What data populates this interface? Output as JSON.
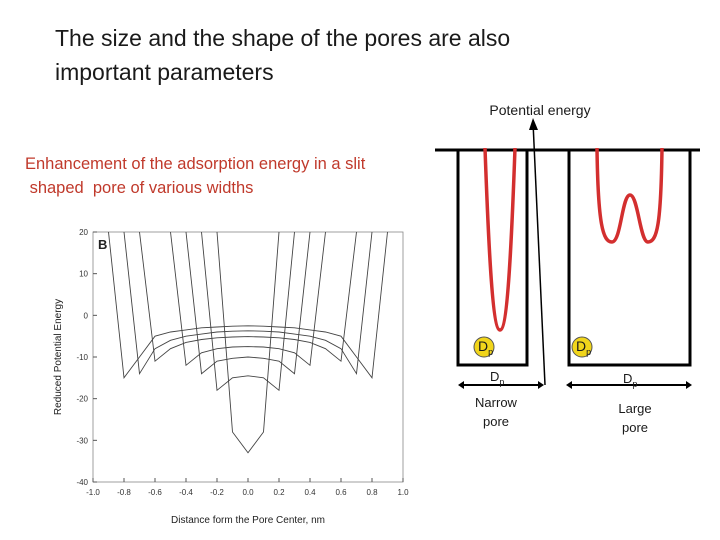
{
  "title": [
    "The size and the shape of the pores are also",
    "important parameters"
  ],
  "subtitle": [
    "Enhancement of the adsorption energy in a slit",
    " shaped  pore of various widths"
  ],
  "chart_data": {
    "type": "line",
    "panel_label": "B",
    "x_label": "Distance form the Pore Center, nm",
    "y_label": "Reduced Potential Energy",
    "x": [
      -1.0,
      -0.9,
      -0.8,
      -0.7,
      -0.6,
      -0.5,
      -0.4,
      -0.3,
      -0.2,
      -0.1,
      0.0,
      0.1,
      0.2,
      0.3,
      0.4,
      0.5,
      0.6,
      0.7,
      0.8,
      0.9,
      1.0
    ],
    "xlim": [
      -1,
      1
    ],
    "ylim": [
      -40,
      20
    ],
    "xticks": [
      {
        "value": -1,
        "label": "-1.0"
      },
      {
        "value": -0.8,
        "label": "-0.8"
      },
      {
        "value": -0.6,
        "label": "-0.6"
      },
      {
        "value": -0.4,
        "label": "-0.4"
      },
      {
        "value": -0.2,
        "label": "-0.2"
      },
      {
        "value": 0,
        "label": "0.0"
      },
      {
        "value": 0.2,
        "label": "0.2"
      },
      {
        "value": 0.4,
        "label": "0.4"
      },
      {
        "value": 0.6,
        "label": "0.6"
      },
      {
        "value": 0.8,
        "label": "0.8"
      },
      {
        "value": 1,
        "label": "1.0"
      }
    ],
    "yticks": [
      20,
      10,
      0,
      -10,
      -20,
      -30,
      -40
    ],
    "color": "#444444",
    "series": [
      {
        "values": [
          null,
          20,
          -15,
          -10,
          -5,
          -4,
          -3.5,
          -3,
          -2.8,
          -2.6,
          -2.5,
          -2.6,
          -2.8,
          -3,
          -3.5,
          -4,
          -5,
          -10,
          -15,
          20,
          null
        ]
      },
      {
        "values": [
          null,
          null,
          20,
          -14,
          -8,
          -6,
          -5,
          -4.5,
          -4,
          -3.8,
          -3.7,
          -3.8,
          -4,
          -4.5,
          -5,
          -6,
          -8,
          -14,
          20,
          null,
          null
        ]
      },
      {
        "values": [
          null,
          null,
          null,
          20,
          -11,
          -8,
          -6.5,
          -5.8,
          -5.4,
          -5.2,
          -5.1,
          -5.2,
          -5.4,
          -5.8,
          -6.5,
          -8,
          -11,
          20,
          null,
          null,
          null
        ]
      },
      {
        "values": [
          null,
          null,
          null,
          null,
          null,
          20,
          -12,
          -9,
          -8,
          -7.6,
          -7.5,
          -7.6,
          -8,
          -9,
          -12,
          20,
          null,
          null,
          null,
          null,
          null
        ]
      },
      {
        "values": [
          null,
          null,
          null,
          null,
          null,
          null,
          20,
          -14,
          -11,
          -10.3,
          -10,
          -10.3,
          -11,
          -14,
          20,
          null,
          null,
          null,
          null,
          null,
          null
        ]
      },
      {
        "values": [
          null,
          null,
          null,
          null,
          null,
          null,
          null,
          20,
          -18,
          -15,
          -14.5,
          -15,
          -18,
          20,
          null,
          null,
          null,
          null,
          null,
          null,
          null
        ]
      },
      {
        "values": [
          null,
          null,
          null,
          null,
          null,
          null,
          null,
          null,
          20,
          -28,
          -33,
          -28,
          20,
          null,
          null,
          null,
          null,
          null,
          null,
          null,
          null
        ]
      }
    ]
  },
  "diagram": {
    "axis_label": "Potential energy",
    "narrow": {
      "circle": {
        "main": "D",
        "sub": "p"
      },
      "width": {
        "main": "D",
        "sub": "p"
      },
      "label": [
        "Narrow",
        "pore"
      ]
    },
    "large": {
      "circle": {
        "main": "D",
        "sub": "p"
      },
      "width": {
        "main": "D",
        "sub": "p"
      },
      "label": [
        "Large",
        "pore"
      ]
    }
  }
}
